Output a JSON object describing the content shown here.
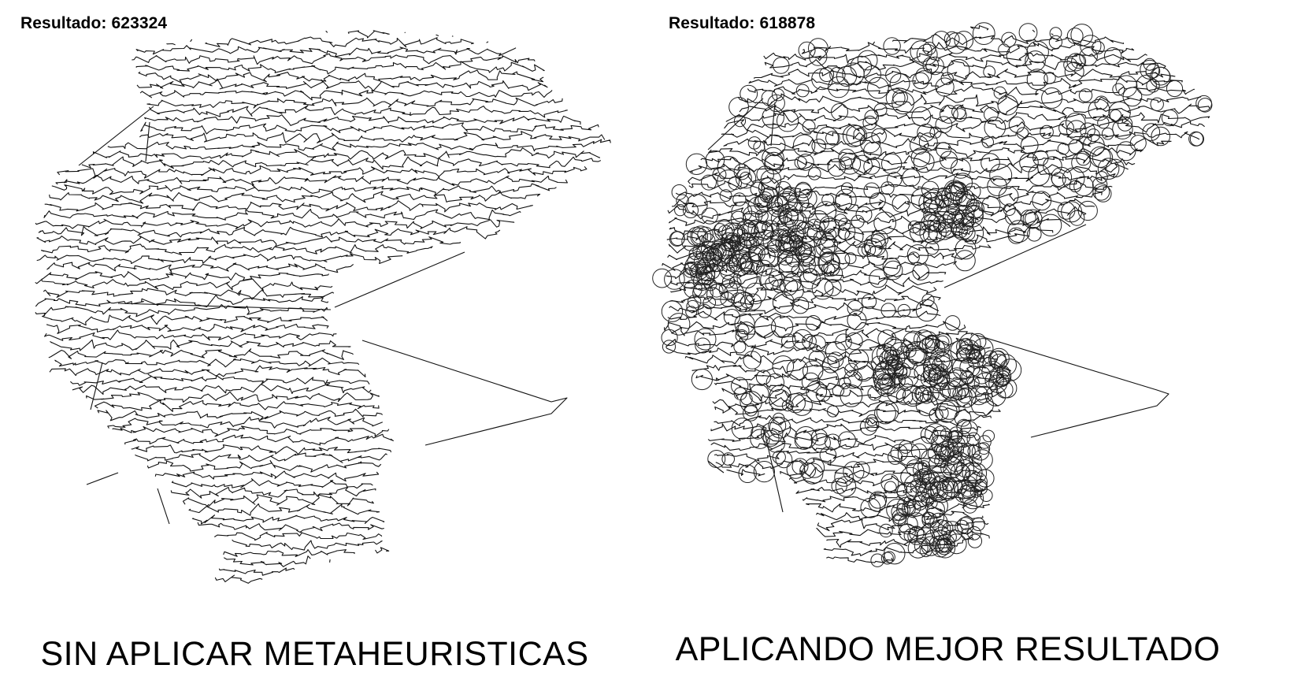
{
  "panels": [
    {
      "result_label": "Resultado:",
      "result_value": "623324",
      "caption": "SIN APLICAR METAHEURISTICAS",
      "show_circles": false
    },
    {
      "result_label": "Resultado:",
      "result_value": "618878",
      "caption": "APLICANDO MEJOR RESULTADO",
      "show_circles": true
    }
  ],
  "colors": {
    "line": "#111111",
    "background": "#ffffff"
  }
}
